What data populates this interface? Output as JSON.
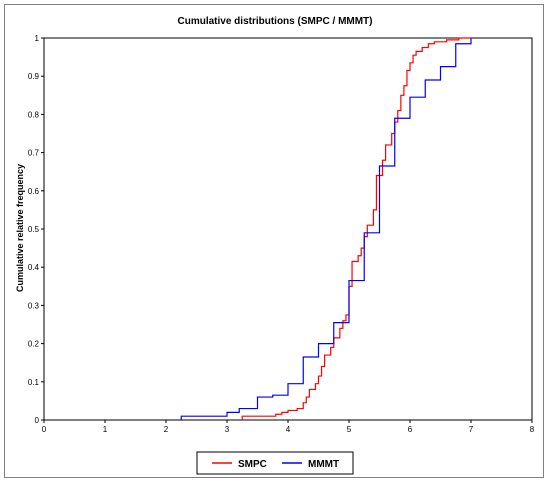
{
  "chart_data": {
    "type": "line",
    "step": true,
    "title": "Cumulative distributions (SMPC / MMMT)",
    "xlabel": "",
    "ylabel": "Cumulative relative frequency",
    "xlim": [
      0,
      8
    ],
    "ylim": [
      0,
      1
    ],
    "x_ticks": [
      "0",
      "1",
      "2",
      "3",
      "4",
      "5",
      "6",
      "7",
      "8"
    ],
    "y_ticks": [
      "0",
      "0.1",
      "0.2",
      "0.3",
      "0.4",
      "0.5",
      "0.6",
      "0.7",
      "0.8",
      "0.9",
      "1"
    ],
    "legend_position": "bottom",
    "grid": false,
    "series": [
      {
        "name": "SMPC",
        "color": "#ff0000",
        "points": [
          [
            3.25,
            0
          ],
          [
            3.25,
            0.01
          ],
          [
            3.8,
            0.01
          ],
          [
            3.8,
            0.015
          ],
          [
            3.9,
            0.015
          ],
          [
            3.9,
            0.02
          ],
          [
            4.0,
            0.02
          ],
          [
            4.0,
            0.025
          ],
          [
            4.15,
            0.025
          ],
          [
            4.15,
            0.03
          ],
          [
            4.25,
            0.03
          ],
          [
            4.25,
            0.045
          ],
          [
            4.3,
            0.045
          ],
          [
            4.3,
            0.06
          ],
          [
            4.35,
            0.06
          ],
          [
            4.35,
            0.08
          ],
          [
            4.45,
            0.08
          ],
          [
            4.45,
            0.095
          ],
          [
            4.5,
            0.095
          ],
          [
            4.5,
            0.115
          ],
          [
            4.55,
            0.115
          ],
          [
            4.55,
            0.14
          ],
          [
            4.6,
            0.14
          ],
          [
            4.6,
            0.17
          ],
          [
            4.7,
            0.17
          ],
          [
            4.7,
            0.19
          ],
          [
            4.75,
            0.19
          ],
          [
            4.75,
            0.215
          ],
          [
            4.85,
            0.215
          ],
          [
            4.85,
            0.24
          ],
          [
            4.9,
            0.24
          ],
          [
            4.9,
            0.26
          ],
          [
            4.95,
            0.26
          ],
          [
            4.95,
            0.275
          ],
          [
            5.0,
            0.275
          ],
          [
            5.0,
            0.35
          ],
          [
            5.05,
            0.35
          ],
          [
            5.05,
            0.415
          ],
          [
            5.15,
            0.415
          ],
          [
            5.15,
            0.43
          ],
          [
            5.2,
            0.43
          ],
          [
            5.2,
            0.45
          ],
          [
            5.25,
            0.45
          ],
          [
            5.25,
            0.48
          ],
          [
            5.3,
            0.48
          ],
          [
            5.3,
            0.51
          ],
          [
            5.4,
            0.51
          ],
          [
            5.4,
            0.55
          ],
          [
            5.45,
            0.55
          ],
          [
            5.45,
            0.64
          ],
          [
            5.55,
            0.64
          ],
          [
            5.55,
            0.68
          ],
          [
            5.6,
            0.68
          ],
          [
            5.6,
            0.72
          ],
          [
            5.7,
            0.72
          ],
          [
            5.7,
            0.75
          ],
          [
            5.75,
            0.75
          ],
          [
            5.75,
            0.78
          ],
          [
            5.8,
            0.78
          ],
          [
            5.8,
            0.81
          ],
          [
            5.85,
            0.81
          ],
          [
            5.85,
            0.85
          ],
          [
            5.9,
            0.85
          ],
          [
            5.9,
            0.875
          ],
          [
            5.95,
            0.875
          ],
          [
            5.95,
            0.915
          ],
          [
            6.0,
            0.915
          ],
          [
            6.0,
            0.935
          ],
          [
            6.05,
            0.935
          ],
          [
            6.05,
            0.955
          ],
          [
            6.1,
            0.955
          ],
          [
            6.1,
            0.965
          ],
          [
            6.2,
            0.965
          ],
          [
            6.2,
            0.975
          ],
          [
            6.3,
            0.975
          ],
          [
            6.3,
            0.985
          ],
          [
            6.4,
            0.985
          ],
          [
            6.4,
            0.99
          ],
          [
            6.6,
            0.99
          ],
          [
            6.6,
            0.995
          ],
          [
            6.8,
            0.995
          ],
          [
            6.8,
            1.0
          ],
          [
            7.0,
            1.0
          ]
        ]
      },
      {
        "name": "MMMT",
        "color": "#0000ff",
        "points": [
          [
            2.25,
            0
          ],
          [
            2.25,
            0.01
          ],
          [
            3.0,
            0.01
          ],
          [
            3.0,
            0.02
          ],
          [
            3.2,
            0.02
          ],
          [
            3.2,
            0.03
          ],
          [
            3.5,
            0.03
          ],
          [
            3.5,
            0.06
          ],
          [
            3.75,
            0.06
          ],
          [
            3.75,
            0.065
          ],
          [
            4.0,
            0.065
          ],
          [
            4.0,
            0.095
          ],
          [
            4.25,
            0.095
          ],
          [
            4.25,
            0.165
          ],
          [
            4.5,
            0.165
          ],
          [
            4.5,
            0.2
          ],
          [
            4.75,
            0.2
          ],
          [
            4.75,
            0.255
          ],
          [
            5.0,
            0.255
          ],
          [
            5.0,
            0.365
          ],
          [
            5.25,
            0.365
          ],
          [
            5.25,
            0.49
          ],
          [
            5.5,
            0.49
          ],
          [
            5.5,
            0.665
          ],
          [
            5.75,
            0.665
          ],
          [
            5.75,
            0.79
          ],
          [
            6.0,
            0.79
          ],
          [
            6.0,
            0.845
          ],
          [
            6.25,
            0.845
          ],
          [
            6.25,
            0.89
          ],
          [
            6.5,
            0.89
          ],
          [
            6.5,
            0.925
          ],
          [
            6.75,
            0.925
          ],
          [
            6.75,
            0.985
          ],
          [
            7.0,
            0.985
          ],
          [
            7.0,
            1.0
          ]
        ]
      }
    ]
  }
}
